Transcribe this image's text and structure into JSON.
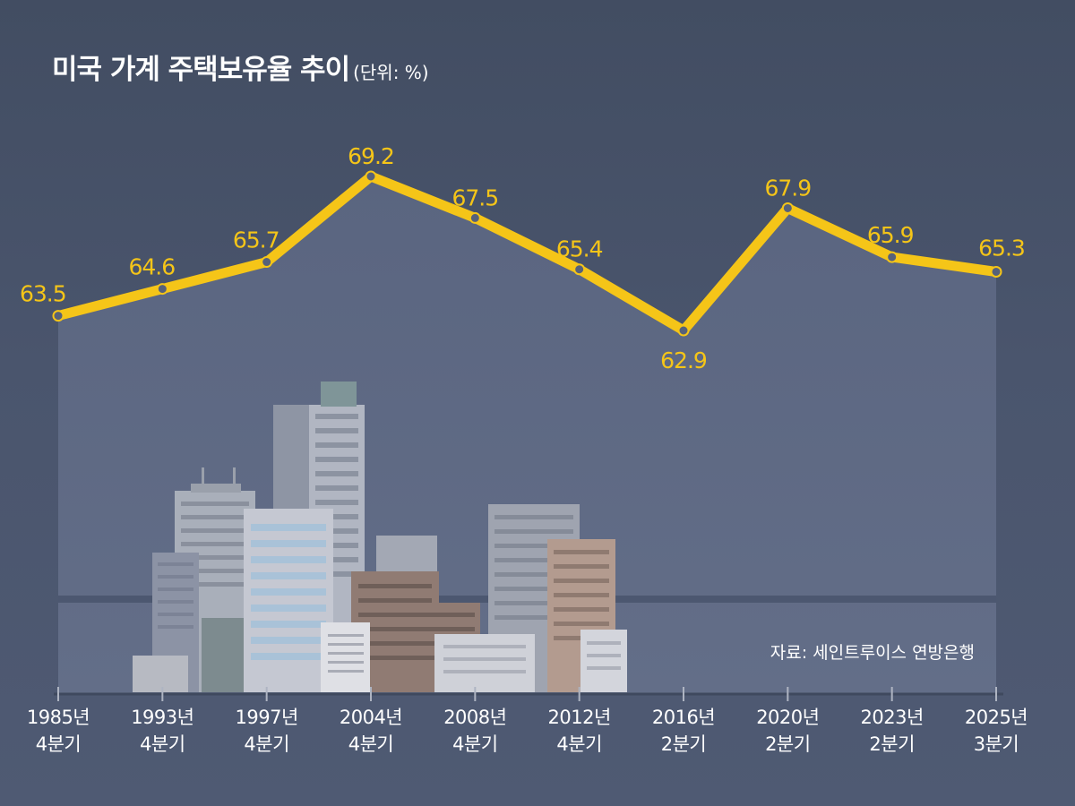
{
  "title": "미국 가계 주택보유율 추이",
  "unit": "(단위: %)",
  "source": "자료: 세인트루이스 연방은행",
  "colors": {
    "line": "#f5c518",
    "label": "#f5c518",
    "background": "#465169"
  },
  "chart_data": {
    "type": "line",
    "categories": [
      {
        "year": "1985년",
        "quarter": "4분기"
      },
      {
        "year": "1993년",
        "quarter": "4분기"
      },
      {
        "year": "1997년",
        "quarter": "4분기"
      },
      {
        "year": "2004년",
        "quarter": "4분기"
      },
      {
        "year": "2008년",
        "quarter": "4분기"
      },
      {
        "year": "2012년",
        "quarter": "4분기"
      },
      {
        "year": "2016년",
        "quarter": "2분기"
      },
      {
        "year": "2020년",
        "quarter": "2분기"
      },
      {
        "year": "2023년",
        "quarter": "2분기"
      },
      {
        "year": "2025년",
        "quarter": "3분기"
      }
    ],
    "values": [
      63.5,
      64.6,
      65.7,
      69.2,
      67.5,
      65.4,
      62.9,
      67.9,
      65.9,
      65.3
    ],
    "value_labels": [
      "63.5",
      "64.6",
      "65.7",
      "69.2",
      "67.5",
      "65.4",
      "62.9",
      "67.9",
      "65.9",
      "65.3"
    ],
    "title": "미국 가계 주택보유율 추이",
    "xlabel": "",
    "ylabel": "",
    "grid": false,
    "legend": "none"
  }
}
